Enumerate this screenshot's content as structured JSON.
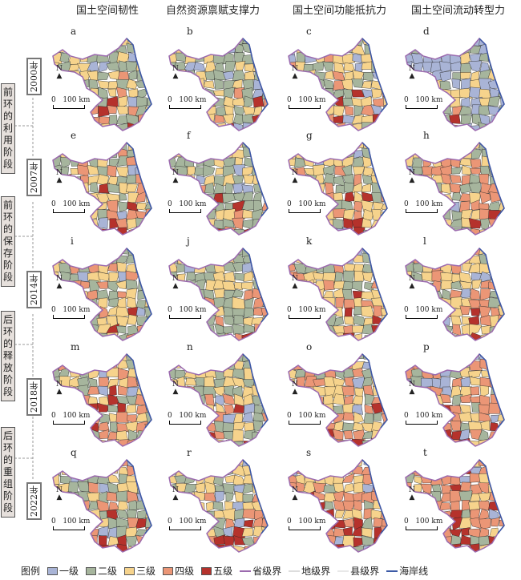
{
  "columns": [
    "国土空间韧性",
    "自然资源禀赋支撑力",
    "国土空间功能抵抗力",
    "国土空间流动转型力"
  ],
  "years": [
    "2000年",
    "2007年",
    "2014年",
    "2018年",
    "2022年"
  ],
  "stages": [
    "前环的利用阶段",
    "前环的保存阶段",
    "后环的释放阶段",
    "后环的重组阶段"
  ],
  "north_label": "N",
  "scale": {
    "zero": "0",
    "value": "100 km"
  },
  "maps": [
    {
      "letter": "a",
      "share": [
        0.1,
        0.4,
        0.3,
        0.12,
        0.08
      ]
    },
    {
      "letter": "b",
      "share": [
        0.1,
        0.45,
        0.3,
        0.1,
        0.05
      ]
    },
    {
      "letter": "c",
      "share": [
        0.1,
        0.3,
        0.35,
        0.15,
        0.1
      ]
    },
    {
      "letter": "d",
      "share": [
        0.55,
        0.2,
        0.15,
        0.07,
        0.03
      ]
    },
    {
      "letter": "e",
      "share": [
        0.05,
        0.3,
        0.3,
        0.2,
        0.15
      ]
    },
    {
      "letter": "f",
      "share": [
        0.08,
        0.45,
        0.3,
        0.12,
        0.05
      ]
    },
    {
      "letter": "g",
      "share": [
        0.05,
        0.25,
        0.4,
        0.2,
        0.1
      ]
    },
    {
      "letter": "h",
      "share": [
        0.05,
        0.3,
        0.25,
        0.3,
        0.1
      ]
    },
    {
      "letter": "i",
      "share": [
        0.05,
        0.3,
        0.35,
        0.2,
        0.1
      ]
    },
    {
      "letter": "j",
      "share": [
        0.05,
        0.4,
        0.35,
        0.15,
        0.05
      ]
    },
    {
      "letter": "k",
      "share": [
        0.05,
        0.2,
        0.45,
        0.2,
        0.1
      ]
    },
    {
      "letter": "l",
      "share": [
        0.05,
        0.15,
        0.3,
        0.4,
        0.1
      ]
    },
    {
      "letter": "m",
      "share": [
        0.05,
        0.25,
        0.3,
        0.25,
        0.15
      ]
    },
    {
      "letter": "n",
      "share": [
        0.05,
        0.35,
        0.35,
        0.18,
        0.07
      ]
    },
    {
      "letter": "o",
      "share": [
        0.05,
        0.2,
        0.35,
        0.28,
        0.12
      ]
    },
    {
      "letter": "p",
      "share": [
        0.12,
        0.1,
        0.25,
        0.38,
        0.15
      ]
    },
    {
      "letter": "q",
      "share": [
        0.1,
        0.25,
        0.3,
        0.22,
        0.13
      ]
    },
    {
      "letter": "r",
      "share": [
        0.08,
        0.3,
        0.35,
        0.2,
        0.07
      ]
    },
    {
      "letter": "s",
      "share": [
        0.05,
        0.15,
        0.35,
        0.3,
        0.15
      ]
    },
    {
      "letter": "t",
      "share": [
        0.05,
        0.1,
        0.2,
        0.4,
        0.25
      ]
    }
  ],
  "legend": {
    "title": "图例",
    "classes": [
      {
        "label": "一级",
        "color": "#a9b4d6"
      },
      {
        "label": "二级",
        "color": "#a6b59d"
      },
      {
        "label": "三级",
        "color": "#f6d38c"
      },
      {
        "label": "四级",
        "color": "#eb9676"
      },
      {
        "label": "五级",
        "color": "#b5322c"
      }
    ],
    "lines": [
      {
        "label": "省级界",
        "color": "#9b6aae"
      },
      {
        "label": "地级界",
        "color": "#dddddd"
      },
      {
        "label": "县级界",
        "color": "#e8e8e8"
      },
      {
        "label": "海岸线",
        "color": "#3c5aa6"
      }
    ]
  }
}
